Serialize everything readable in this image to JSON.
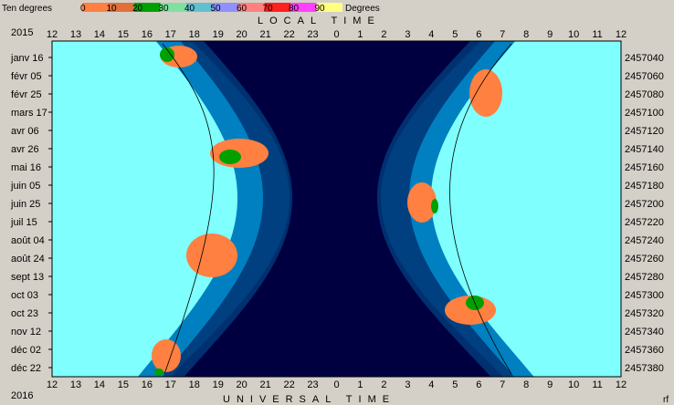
{
  "legend": {
    "left_label": "Ten degrees",
    "right_label": "Degrees",
    "stops": [
      {
        "label": "0",
        "color": "#ff8040"
      },
      {
        "label": "10",
        "color": "#e0703a"
      },
      {
        "label": "20",
        "color": "#00a000"
      },
      {
        "label": "30",
        "color": "#80e0a0"
      },
      {
        "label": "40",
        "color": "#60c0d0"
      },
      {
        "label": "50",
        "color": "#9090ff"
      },
      {
        "label": "60",
        "color": "#ff8080"
      },
      {
        "label": "70",
        "color": "#ff2020"
      },
      {
        "label": "80",
        "color": "#ff40ff"
      },
      {
        "label": "90",
        "color": "#ffff80"
      }
    ]
  },
  "labels": {
    "year_top": "2015",
    "year_bottom": "2016",
    "local_time": "LOCAL TIME",
    "universal_time": "UNIVERSAL TIME",
    "corner": "rf"
  },
  "chart_data": {
    "type": "heatmap",
    "x_ticks": [
      "12",
      "13",
      "14",
      "15",
      "16",
      "17",
      "18",
      "19",
      "20",
      "21",
      "22",
      "23",
      "0",
      "1",
      "2",
      "3",
      "4",
      "5",
      "6",
      "7",
      "8",
      "9",
      "10",
      "11",
      "12"
    ],
    "date_labels": [
      "janv 16",
      "févr 05",
      "févr 25",
      "mars 17",
      "avr 06",
      "avr 26",
      "mai 16",
      "juin 05",
      "juin 25",
      "juil 15",
      "août 04",
      "août 24",
      "sept 13",
      "oct 03",
      "oct 23",
      "nov 12",
      "déc 02",
      "déc 22"
    ],
    "jd_labels": [
      "2457040",
      "2457060",
      "2457080",
      "2457100",
      "2457120",
      "2457140",
      "2457160",
      "2457180",
      "2457200",
      "2457220",
      "2457240",
      "2457260",
      "2457280",
      "2457300",
      "2457320",
      "2457340",
      "2457360",
      "2457380"
    ],
    "colors": {
      "day": "#80ffff",
      "twilight_civil": "#0080c0",
      "twilight_nautical": "#004080",
      "twilight_astro": "#003070",
      "night": "#000040",
      "object_up_low": "#ff8040",
      "object_up_high": "#00a000"
    }
  }
}
